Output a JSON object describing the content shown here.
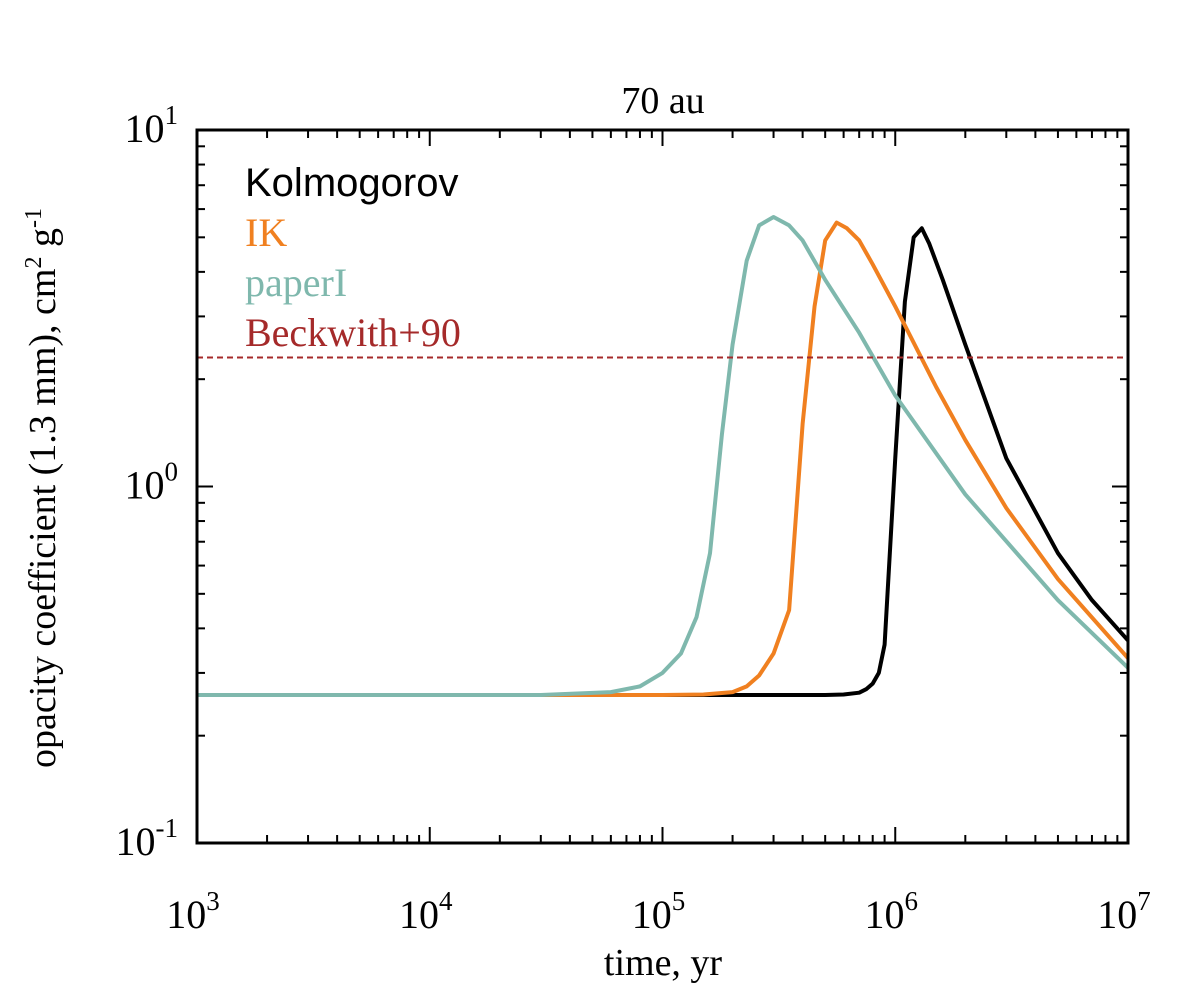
{
  "chart_data": {
    "type": "line",
    "title": "70 au",
    "xlabel": "time, yr",
    "ylabel_main": "opacity coefficient (1.3 mm), cm",
    "ylabel_sup1": "2",
    "ylabel_g": " g",
    "ylabel_sup2": "-1",
    "xscale": "log",
    "yscale": "log",
    "xlim": [
      1000,
      10000000
    ],
    "ylim": [
      0.1,
      10
    ],
    "x_ticks": [
      {
        "base": "10",
        "exp": "3"
      },
      {
        "base": "10",
        "exp": "4"
      },
      {
        "base": "10",
        "exp": "5"
      },
      {
        "base": "10",
        "exp": "6"
      },
      {
        "base": "10",
        "exp": "7"
      }
    ],
    "y_ticks": [
      {
        "base": "10",
        "exp": "-1"
      },
      {
        "base": "10",
        "exp": "0"
      },
      {
        "base": "10",
        "exp": "1"
      }
    ],
    "legend_position": "top-left",
    "colors": {
      "Kolmogorov": "#000000",
      "IK": "#f08020",
      "paperI": "#7fb8ad",
      "Beckwith+90": "#a52a2a"
    },
    "series": [
      {
        "name": "Kolmogorov",
        "x": [
          1000,
          100000,
          300000,
          500000,
          600000,
          700000,
          750000,
          800000,
          850000,
          900000,
          1000000,
          1100000,
          1200000,
          1300000,
          1400000,
          1600000,
          2000000,
          3000000,
          5000000,
          7000000,
          10000000
        ],
        "values": [
          0.26,
          0.26,
          0.26,
          0.26,
          0.261,
          0.264,
          0.27,
          0.28,
          0.3,
          0.36,
          1.2,
          3.3,
          5.0,
          5.3,
          4.8,
          3.8,
          2.5,
          1.2,
          0.65,
          0.48,
          0.37
        ]
      },
      {
        "name": "IK",
        "x": [
          1000,
          100000,
          150000,
          200000,
          230000,
          260000,
          300000,
          350000,
          400000,
          450000,
          500000,
          560000,
          620000,
          700000,
          800000,
          1000000,
          1500000,
          2000000,
          3000000,
          5000000,
          10000000
        ],
        "values": [
          0.26,
          0.26,
          0.261,
          0.265,
          0.275,
          0.295,
          0.34,
          0.45,
          1.5,
          3.2,
          4.9,
          5.5,
          5.3,
          4.9,
          4.2,
          3.2,
          1.9,
          1.35,
          0.87,
          0.55,
          0.33
        ]
      },
      {
        "name": "paperI",
        "x": [
          1000,
          30000,
          60000,
          80000,
          100000,
          120000,
          140000,
          160000,
          180000,
          200000,
          230000,
          260000,
          300000,
          350000,
          400000,
          500000,
          700000,
          1000000,
          2000000,
          5000000,
          10000000
        ],
        "values": [
          0.26,
          0.26,
          0.265,
          0.275,
          0.3,
          0.34,
          0.43,
          0.65,
          1.4,
          2.5,
          4.3,
          5.4,
          5.7,
          5.4,
          4.9,
          3.8,
          2.7,
          1.8,
          0.95,
          0.48,
          0.31
        ]
      },
      {
        "name": "Beckwith+90",
        "x": [
          1000,
          10000000
        ],
        "values": [
          2.3,
          2.3
        ],
        "dashed": true
      }
    ]
  }
}
